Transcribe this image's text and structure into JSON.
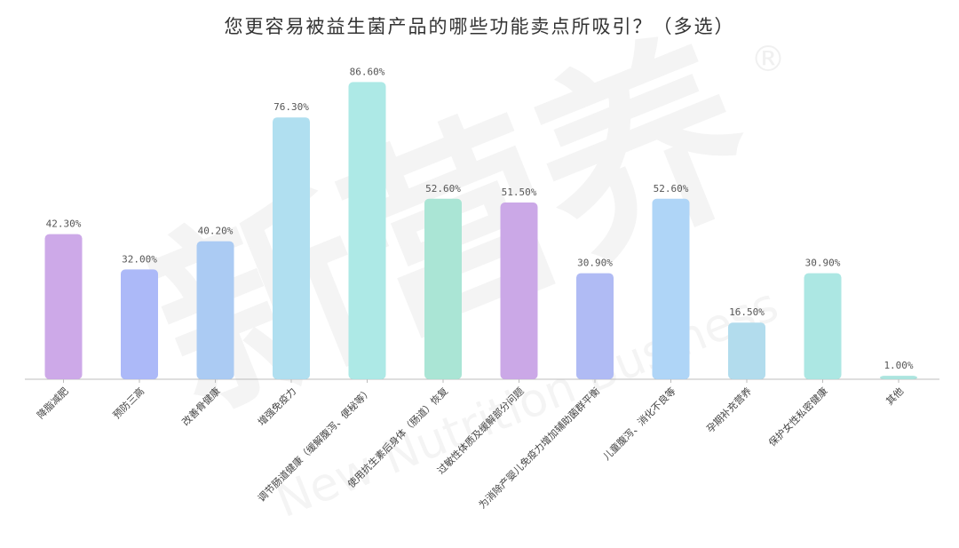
{
  "chart_data": {
    "type": "bar",
    "title": "您更容易被益生菌产品的哪些功能卖点所吸引？（多选）",
    "xlabel": "",
    "ylabel": "",
    "ylim": [
      0,
      90
    ],
    "grid": false,
    "categories": [
      "降脂减肥",
      "预防三高",
      "改善骨健康",
      "增强免疫力",
      "调节肠道健康（缓解腹泻、便秘等）",
      "使用抗生素后身体（肠道）恢复",
      "过敏性体质及缓解部分问题",
      "为消除产婴儿免疫力增加辅助菌群平衡",
      "儿童腹泻、消化不良等",
      "孕期补充营养",
      "保护女性私密健康",
      "其他"
    ],
    "values": [
      42.3,
      32.0,
      40.2,
      76.3,
      86.6,
      52.6,
      51.5,
      30.9,
      52.6,
      16.5,
      30.9,
      1.0
    ],
    "value_labels": [
      "42.30%",
      "32.00%",
      "40.20%",
      "76.30%",
      "86.60%",
      "52.60%",
      "51.50%",
      "30.90%",
      "52.60%",
      "16.50%",
      "30.90%",
      "1.00%"
    ],
    "colors": [
      "#c9a2e6",
      "#a5b3f7",
      "#a4c7f2",
      "#a9dcef",
      "#a6e7e4",
      "#a3e3d1",
      "#c7a1e5",
      "#a9b5f3",
      "#a8d1f6",
      "#abd9ec",
      "#a5e5e1",
      "#a5e3dc"
    ]
  },
  "watermark": {
    "main": "新营养",
    "sub": "New Nutrition Business",
    "reg": "®"
  }
}
